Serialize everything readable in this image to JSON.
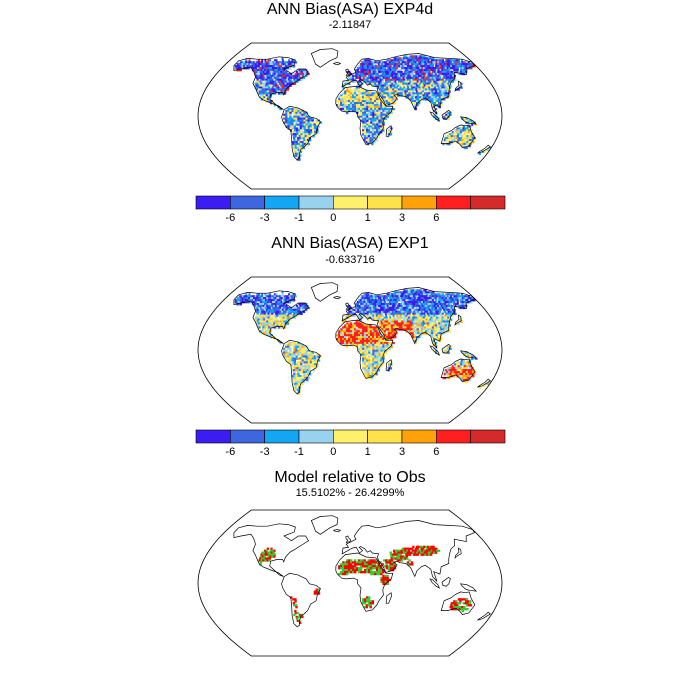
{
  "panels": [
    {
      "title": "ANN Bias(ASA) EXP4d",
      "subtitle": "-2.11847",
      "palette": "bias_exp4d",
      "colorbar": true
    },
    {
      "title": "ANN Bias(ASA) EXP1",
      "subtitle": "-0.633716",
      "palette": "bias_exp1",
      "colorbar": true
    },
    {
      "title": "Model relative to Obs",
      "subtitle": "15.5102% - 26.4299%",
      "palette": "relative",
      "colorbar": false
    }
  ],
  "colorbar": {
    "colors": [
      "#3b1cf2",
      "#3d66e0",
      "#13a6f2",
      "#98d2ef",
      "#fff06b",
      "#ffe24a",
      "#ffa20a",
      "#ff1f1f",
      "#d52a2a"
    ],
    "ticks": [
      "-6",
      "-3",
      "-1",
      "0",
      "1",
      "3",
      "6"
    ]
  },
  "relative_colors": {
    "model_higher": "#ff0000",
    "model_lower": "#33cc33"
  }
}
